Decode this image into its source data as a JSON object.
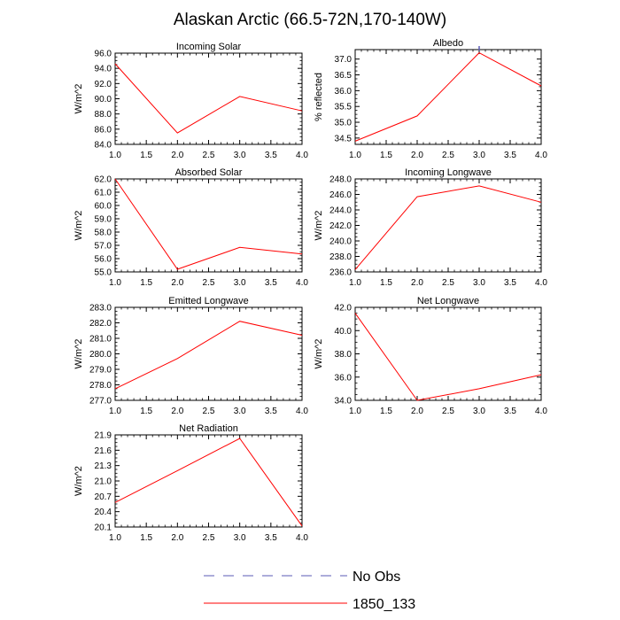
{
  "title": "Alaskan Arctic (66.5-72N,170-140W)",
  "legend": {
    "items": [
      {
        "label": "No Obs",
        "color": "#5a5ab4",
        "dash": true
      },
      {
        "label": "1850_133",
        "color": "#ff0000",
        "dash": false
      }
    ]
  },
  "chart_data": [
    {
      "type": "line",
      "title": "Incoming Solar",
      "ylabel": "W/m^2",
      "xlim": [
        1.0,
        4.0
      ],
      "ylim": [
        84.0,
        96.0
      ],
      "xticks": [
        "1.0",
        "1.5",
        "2.0",
        "2.5",
        "3.0",
        "3.5",
        "4.0"
      ],
      "yticks": [
        "84.0",
        "86.0",
        "88.0",
        "90.0",
        "92.0",
        "94.0",
        "96.0"
      ],
      "series": [
        {
          "name": "1850_133",
          "x": [
            1,
            2,
            3,
            4
          ],
          "values": [
            94.6,
            85.5,
            90.3,
            88.4
          ]
        }
      ]
    },
    {
      "type": "line",
      "title": "Albedo",
      "ylabel": "% reflected",
      "xlim": [
        1.0,
        4.0
      ],
      "ylim": [
        34.3,
        37.3
      ],
      "xticks": [
        "1.0",
        "1.5",
        "2.0",
        "2.5",
        "3.0",
        "3.5",
        "4.0"
      ],
      "yticks": [
        "34.5",
        "35.0",
        "35.5",
        "36.0",
        "36.5",
        "37.0"
      ],
      "series": [
        {
          "name": "1850_133",
          "x": [
            1,
            2,
            3,
            4
          ],
          "values": [
            34.4,
            35.2,
            37.2,
            36.15
          ]
        }
      ]
    },
    {
      "type": "line",
      "title": "Absorbed Solar",
      "ylabel": "W/m^2",
      "xlim": [
        1.0,
        4.0
      ],
      "ylim": [
        55.0,
        62.0
      ],
      "xticks": [
        "1.0",
        "1.5",
        "2.0",
        "2.5",
        "3.0",
        "3.5",
        "4.0"
      ],
      "yticks": [
        "55.0",
        "56.0",
        "57.0",
        "58.0",
        "59.0",
        "60.0",
        "61.0",
        "62.0"
      ],
      "series": [
        {
          "name": "1850_133",
          "x": [
            1,
            2,
            3,
            4
          ],
          "values": [
            62.0,
            55.2,
            56.85,
            56.35
          ]
        }
      ]
    },
    {
      "type": "line",
      "title": "Incoming Longwave",
      "ylabel": "W/m^2",
      "xlim": [
        1.0,
        4.0
      ],
      "ylim": [
        236.0,
        248.0
      ],
      "xticks": [
        "1.0",
        "1.5",
        "2.0",
        "2.5",
        "3.0",
        "3.5",
        "4.0"
      ],
      "yticks": [
        "236.0",
        "238.0",
        "240.0",
        "242.0",
        "244.0",
        "246.0",
        "248.0"
      ],
      "series": [
        {
          "name": "1850_133",
          "x": [
            1,
            2,
            3,
            4
          ],
          "values": [
            236.3,
            245.7,
            247.1,
            245.0
          ]
        }
      ]
    },
    {
      "type": "line",
      "title": "Emitted Longwave",
      "ylabel": "W/m^2",
      "xlim": [
        1.0,
        4.0
      ],
      "ylim": [
        277.0,
        283.0
      ],
      "xticks": [
        "1.0",
        "1.5",
        "2.0",
        "2.5",
        "3.0",
        "3.5",
        "4.0"
      ],
      "yticks": [
        "277.0",
        "278.0",
        "279.0",
        "280.0",
        "281.0",
        "282.0",
        "283.0"
      ],
      "series": [
        {
          "name": "1850_133",
          "x": [
            1,
            2,
            3,
            4
          ],
          "values": [
            277.75,
            279.7,
            282.1,
            281.2
          ]
        }
      ]
    },
    {
      "type": "line",
      "title": "Net Longwave",
      "ylabel": "W/m^2",
      "xlim": [
        1.0,
        4.0
      ],
      "ylim": [
        34.0,
        42.0
      ],
      "xticks": [
        "1.0",
        "1.5",
        "2.0",
        "2.5",
        "3.0",
        "3.5",
        "4.0"
      ],
      "yticks": [
        "34.0",
        "36.0",
        "38.0",
        "40.0",
        "42.0"
      ],
      "series": [
        {
          "name": "1850_133",
          "x": [
            1,
            2,
            3,
            4
          ],
          "values": [
            41.5,
            34.0,
            35.0,
            36.2
          ]
        }
      ]
    },
    {
      "type": "line",
      "title": "Net Radiation",
      "ylabel": "W/m^2",
      "xlim": [
        1.0,
        4.0
      ],
      "ylim": [
        20.1,
        21.9
      ],
      "xticks": [
        "1.0",
        "1.5",
        "2.0",
        "2.5",
        "3.0",
        "3.5",
        "4.0"
      ],
      "yticks": [
        "20.1",
        "20.4",
        "20.7",
        "21.0",
        "21.3",
        "21.6",
        "21.9"
      ],
      "series": [
        {
          "name": "1850_133",
          "x": [
            1,
            2,
            3,
            4
          ],
          "values": [
            20.58,
            21.2,
            21.83,
            20.12
          ]
        }
      ]
    }
  ]
}
